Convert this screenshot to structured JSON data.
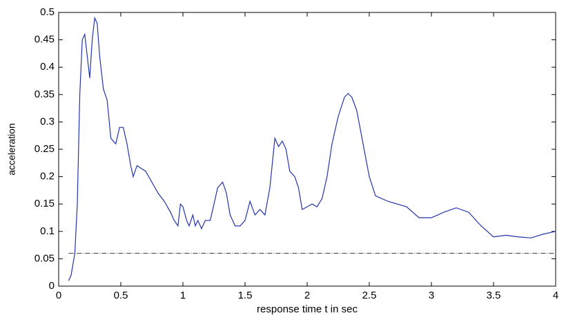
{
  "chart_data": {
    "type": "line",
    "xlabel": "response time t in sec",
    "ylabel": "acceleration",
    "xlim": [
      0,
      4
    ],
    "ylim": [
      0,
      0.5
    ],
    "xticks": [
      0,
      0.5,
      1,
      1.5,
      2,
      2.5,
      3,
      3.5,
      4
    ],
    "yticks": [
      0,
      0.05,
      0.1,
      0.15,
      0.2,
      0.25,
      0.3,
      0.35,
      0.4,
      0.45,
      0.5
    ],
    "grid": false,
    "series": [
      {
        "color": "#2233aa",
        "style": "solid",
        "x": [
          0.08,
          0.1,
          0.13,
          0.15,
          0.17,
          0.19,
          0.21,
          0.23,
          0.25,
          0.27,
          0.29,
          0.31,
          0.33,
          0.36,
          0.39,
          0.42,
          0.46,
          0.49,
          0.52,
          0.55,
          0.58,
          0.6,
          0.63,
          0.7,
          0.75,
          0.8,
          0.85,
          0.9,
          0.93,
          0.96,
          0.98,
          1.0,
          1.03,
          1.05,
          1.08,
          1.1,
          1.12,
          1.15,
          1.18,
          1.22,
          1.25,
          1.28,
          1.32,
          1.35,
          1.38,
          1.42,
          1.46,
          1.5,
          1.54,
          1.58,
          1.62,
          1.66,
          1.7,
          1.74,
          1.77,
          1.8,
          1.83,
          1.86,
          1.9,
          1.93,
          1.96,
          2.0,
          2.04,
          2.08,
          2.12,
          2.16,
          2.2,
          2.25,
          2.3,
          2.33,
          2.36,
          2.4,
          2.45,
          2.5,
          2.55,
          2.65,
          2.8,
          2.9,
          3.0,
          3.1,
          3.2,
          3.3,
          3.4,
          3.5,
          3.6,
          3.7,
          3.8,
          3.9,
          4.0
        ],
        "values": [
          0.01,
          0.02,
          0.06,
          0.15,
          0.35,
          0.45,
          0.46,
          0.42,
          0.38,
          0.45,
          0.49,
          0.48,
          0.42,
          0.36,
          0.34,
          0.27,
          0.26,
          0.29,
          0.29,
          0.26,
          0.22,
          0.2,
          0.22,
          0.21,
          0.19,
          0.17,
          0.155,
          0.135,
          0.12,
          0.11,
          0.15,
          0.145,
          0.12,
          0.11,
          0.13,
          0.11,
          0.12,
          0.105,
          0.12,
          0.12,
          0.15,
          0.18,
          0.19,
          0.17,
          0.13,
          0.11,
          0.11,
          0.12,
          0.155,
          0.13,
          0.14,
          0.13,
          0.18,
          0.27,
          0.255,
          0.265,
          0.25,
          0.21,
          0.2,
          0.18,
          0.14,
          0.145,
          0.15,
          0.145,
          0.16,
          0.2,
          0.26,
          0.31,
          0.345,
          0.352,
          0.345,
          0.32,
          0.26,
          0.2,
          0.165,
          0.155,
          0.145,
          0.125,
          0.125,
          0.135,
          0.143,
          0.135,
          0.11,
          0.09,
          0.093,
          0.09,
          0.088,
          0.095,
          0.1
        ]
      },
      {
        "color": "#555555",
        "style": "dashdot",
        "x": [
          0.08,
          4
        ],
        "values": [
          0.06,
          0.06
        ]
      }
    ]
  }
}
